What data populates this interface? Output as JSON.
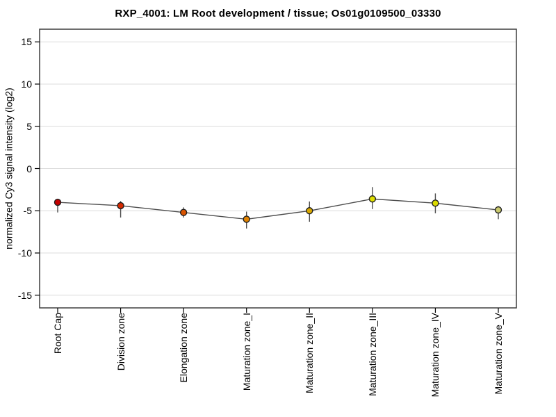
{
  "chart_data": {
    "type": "line",
    "title": "RXP_4001: LM Root development / tissue; Os01g0109500_03330",
    "xlabel": "",
    "ylabel": "normalized Cy3 signal intensity (log2)",
    "categories": [
      "Root Cap",
      "Division zone",
      "Elongation zone",
      "Maturation zone_I",
      "Maturation zone_II",
      "Maturation zone_III",
      "Maturation zone_IV",
      "Maturation zone_V"
    ],
    "series": [
      {
        "name": "Cy3 signal intensity",
        "values": [
          -4.0,
          -4.4,
          -5.2,
          -6.0,
          -5.0,
          -3.6,
          -4.1,
          -4.9
        ],
        "error_high": [
          -3.8,
          -3.85,
          -4.6,
          -5.1,
          -3.9,
          -2.2,
          -2.95,
          -4.45
        ],
        "error_low": [
          -5.2,
          -5.8,
          -5.8,
          -7.1,
          -6.3,
          -4.8,
          -5.3,
          -6.0
        ]
      }
    ],
    "point_colors": [
      "#c40000",
      "#d42900",
      "#d95300",
      "#e08200",
      "#d9a800",
      "#dfdf00",
      "#dbdb00",
      "#c9c96e"
    ],
    "yticks": [
      15,
      10,
      5,
      0,
      -5,
      -10,
      -15
    ],
    "ylim": [
      -16.5,
      16.5
    ],
    "grid": "horizontal",
    "legend": "none",
    "colors": {
      "background": "#ffffff",
      "grid": "#dcdcdc",
      "frame": "#3d3d3d",
      "line": "#4d4d4d",
      "error_bar": "#4d4d4d",
      "marker_outline": "#1f1f1f",
      "tick": "#000000"
    }
  }
}
